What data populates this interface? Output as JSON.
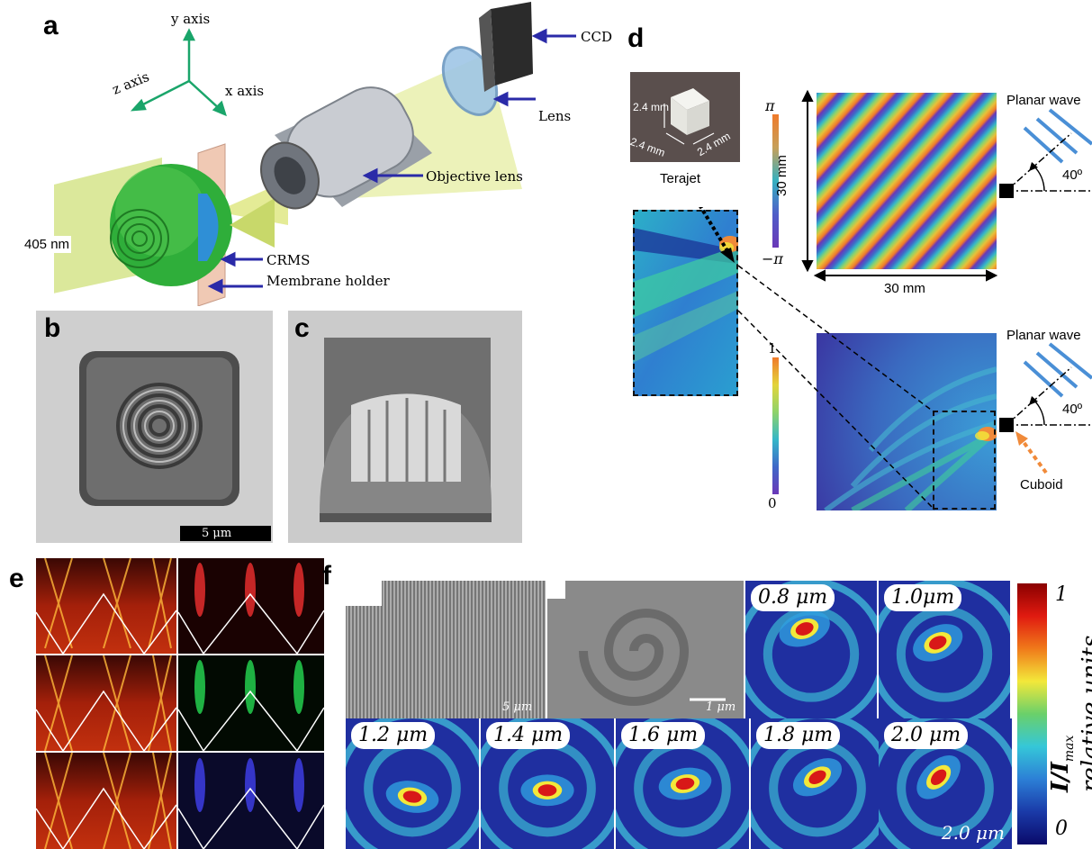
{
  "panels": {
    "a": "a",
    "b": "b",
    "c": "c",
    "d": "d",
    "e": "e",
    "f": "f"
  },
  "panel_a": {
    "y_axis": "y axis",
    "x_axis": "x axis",
    "z_axis": "z axis",
    "ccd": "CCD",
    "lens": "Lens",
    "objective": "Objective lens",
    "crms": "CRMS",
    "holder": "Membrane holder",
    "wavelength": "405 nm"
  },
  "panel_b": {
    "scale": "5 μm"
  },
  "panel_d": {
    "cube_w": "2.4 mm",
    "cube_d1": "2.4 mm",
    "cube_d2": "2.4 mm",
    "terajet": "Terajet",
    "phase_top": "π",
    "phase_bottom": "−π",
    "dim_v": "30 mm",
    "dim_h": "30 mm",
    "planar_top": "Planar wave",
    "planar_bottom": "Planar wave",
    "angle_top": "40º",
    "angle_bottom": "40º",
    "int_top": "1",
    "int_bottom": "0",
    "cuboid": "Cuboid"
  },
  "panel_f": {
    "scale_a": "5 μm",
    "scale_b": "1 μm",
    "scale_c": "2.0 μm",
    "labels": [
      "0.8 μm",
      "1.0μm",
      "1.2 μm",
      "1.4 μm",
      "1.6 μm",
      "1.8 μm",
      "2.0 μm"
    ],
    "cb_top": "1",
    "cb_bottom": "0",
    "cb_label_1": "I/I",
    "cb_label_sub": "max",
    "cb_label_2": "relative units"
  },
  "colors": {
    "jet_dark": "#0a2a9a",
    "jet_blue": "#2c7fd6",
    "jet_cyan": "#35c7d8",
    "jet_yellow": "#f3e83a",
    "jet_red": "#d41818",
    "arrow_blue": "#2a2aa8",
    "hot_red": "#c2200c",
    "cuboid_orange": "#f08a3a"
  }
}
